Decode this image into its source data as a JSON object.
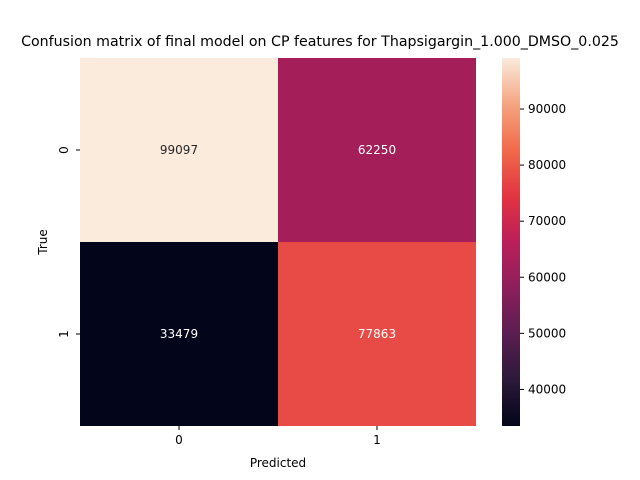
{
  "chart_data": {
    "type": "heatmap",
    "title": "Confusion matrix of final model on CP features for Thapsigargin_1.000_DMSO_0.025",
    "xlabel": "Predicted",
    "ylabel": "True",
    "x_categories": [
      "0",
      "1"
    ],
    "y_categories": [
      "0",
      "1"
    ],
    "values": [
      [
        99097,
        62250
      ],
      [
        33479,
        77863
      ]
    ],
    "annotations": [
      [
        "99097",
        "62250"
      ],
      [
        "33479",
        "77863"
      ]
    ],
    "colorbar": {
      "min": 33479,
      "max": 99097,
      "ticks": [
        40000,
        50000,
        60000,
        70000,
        80000,
        90000
      ],
      "tick_labels": [
        "40000",
        "50000",
        "60000",
        "70000",
        "80000",
        "90000"
      ],
      "colormap": "rocket"
    },
    "grid": false
  }
}
